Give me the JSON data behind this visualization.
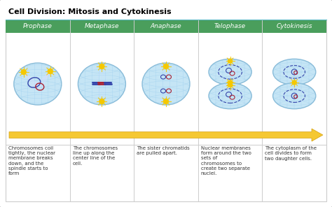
{
  "title": "Cell Division: Mitosis and Cytokinesis",
  "title_fontsize": 8,
  "title_fontweight": "bold",
  "background_color": "#f0f0f0",
  "border_color": "#bbbbbb",
  "header_bg": "#4a9e5c",
  "header_text_color": "#ffffff",
  "header_fontsize": 6.5,
  "stages": [
    "Prophase",
    "Metaphase",
    "Anaphase",
    "Telophase",
    "Cytokinesis"
  ],
  "descriptions": [
    "Chromosomes coil\ntightly, the nuclear\nmembrane breaks\ndown, and the\nspindle starts to\nform",
    "The chromosomes\nline up along the\ncenter line of the\ncell.",
    "The sister chromatids\nare pulled apart.",
    "Nuclear membranes\nform around the two\nsets of\nchromosomes to\ncreate two separate\nnuclei.",
    "The cytoplasm of the\ncell divides to form\ntwo daughter cells."
  ],
  "desc_fontsize": 5.0,
  "cell_color": "#c5e5f5",
  "cell_color2": "#d5ecf8",
  "cell_edge_color": "#88bbd8",
  "grid_color": "#99ccee",
  "arrow_color": "#f5c832",
  "arrow_edge_color": "#d4a010",
  "table_bg": "#ffffff",
  "divider_color": "#cccccc",
  "teal_line_color": "#5bb8c4"
}
